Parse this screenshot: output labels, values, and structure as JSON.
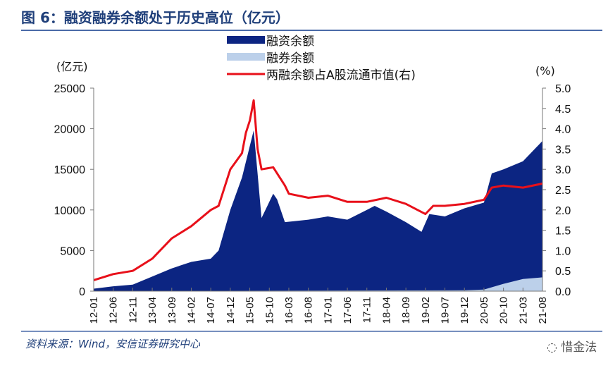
{
  "title": "图 6：融资融券余额处于历史高位（亿元）",
  "source": "资料来源：Wind，安信证券研究中心",
  "watermark": "惜金法",
  "chart_data": {
    "type": "area",
    "left_axis": {
      "unit_label": "(亿元)",
      "ylim": [
        0,
        25000
      ],
      "ticks": [
        "0",
        "5000",
        "10000",
        "15000",
        "20000",
        "25000"
      ]
    },
    "right_axis": {
      "unit_label": "(%)",
      "ylim": [
        0,
        5
      ],
      "ticks": [
        "0.0",
        "0.5",
        "1.0",
        "1.5",
        "2.0",
        "2.5",
        "3.0",
        "3.5",
        "4.0",
        "4.5",
        "5.0"
      ]
    },
    "x_ticks": [
      "12-01",
      "12-06",
      "12-11",
      "13-04",
      "13-09",
      "14-02",
      "14-07",
      "14-12",
      "15-05",
      "15-10",
      "16-03",
      "16-08",
      "17-01",
      "17-06",
      "17-11",
      "18-04",
      "18-09",
      "19-02",
      "19-07",
      "19-12",
      "20-05",
      "20-10",
      "21-03",
      "21-08"
    ],
    "legend_placement": "top-center",
    "grid": false,
    "series": [
      {
        "name": "融资余额",
        "kind": "area",
        "axis": "left",
        "color": "#0c2582",
        "points": [
          [
            "12-01",
            300
          ],
          [
            "12-06",
            600
          ],
          [
            "12-11",
            800
          ],
          [
            "13-04",
            1800
          ],
          [
            "13-09",
            2800
          ],
          [
            "14-02",
            3600
          ],
          [
            "14-07",
            4000
          ],
          [
            "14-09",
            5000
          ],
          [
            "14-12",
            10000
          ],
          [
            "15-03",
            14000
          ],
          [
            "15-06",
            19800
          ],
          [
            "15-07",
            14500
          ],
          [
            "15-08",
            9000
          ],
          [
            "15-11",
            12000
          ],
          [
            "15-12",
            11300
          ],
          [
            "16-02",
            8500
          ],
          [
            "16-08",
            8800
          ],
          [
            "17-01",
            9200
          ],
          [
            "17-06",
            8800
          ],
          [
            "17-11",
            10000
          ],
          [
            "18-01",
            10500
          ],
          [
            "18-04",
            9800
          ],
          [
            "18-09",
            8500
          ],
          [
            "19-01",
            7300
          ],
          [
            "19-03",
            9500
          ],
          [
            "19-07",
            9200
          ],
          [
            "19-12",
            10200
          ],
          [
            "20-05",
            10900
          ],
          [
            "20-07",
            14500
          ],
          [
            "20-10",
            15000
          ],
          [
            "21-03",
            16000
          ],
          [
            "21-08",
            18500
          ]
        ]
      },
      {
        "name": "融券余额",
        "kind": "area",
        "axis": "left",
        "color": "#bcd0ea",
        "points": [
          [
            "12-01",
            20
          ],
          [
            "19-12",
            100
          ],
          [
            "20-05",
            200
          ],
          [
            "20-10",
            900
          ],
          [
            "21-03",
            1500
          ],
          [
            "21-08",
            1700
          ]
        ]
      },
      {
        "name": "两融余额占A股流通市值(右)",
        "kind": "line",
        "axis": "right",
        "color": "#e8101a",
        "points": [
          [
            "12-01",
            0.27
          ],
          [
            "12-06",
            0.42
          ],
          [
            "12-11",
            0.5
          ],
          [
            "13-04",
            0.8
          ],
          [
            "13-09",
            1.3
          ],
          [
            "14-02",
            1.6
          ],
          [
            "14-07",
            2.0
          ],
          [
            "14-09",
            2.1
          ],
          [
            "14-12",
            3.0
          ],
          [
            "15-03",
            3.4
          ],
          [
            "15-04",
            3.9
          ],
          [
            "15-05",
            4.2
          ],
          [
            "15-06",
            4.7
          ],
          [
            "15-07",
            3.5
          ],
          [
            "15-08",
            3.0
          ],
          [
            "15-11",
            3.05
          ],
          [
            "16-02",
            2.6
          ],
          [
            "16-03",
            2.4
          ],
          [
            "16-08",
            2.3
          ],
          [
            "17-01",
            2.35
          ],
          [
            "17-06",
            2.2
          ],
          [
            "17-11",
            2.2
          ],
          [
            "18-04",
            2.3
          ],
          [
            "18-09",
            2.15
          ],
          [
            "19-02",
            1.9
          ],
          [
            "19-04",
            2.1
          ],
          [
            "19-07",
            2.1
          ],
          [
            "19-12",
            2.15
          ],
          [
            "20-05",
            2.25
          ],
          [
            "20-07",
            2.55
          ],
          [
            "20-10",
            2.6
          ],
          [
            "21-03",
            2.55
          ],
          [
            "21-08",
            2.65
          ]
        ]
      }
    ]
  }
}
